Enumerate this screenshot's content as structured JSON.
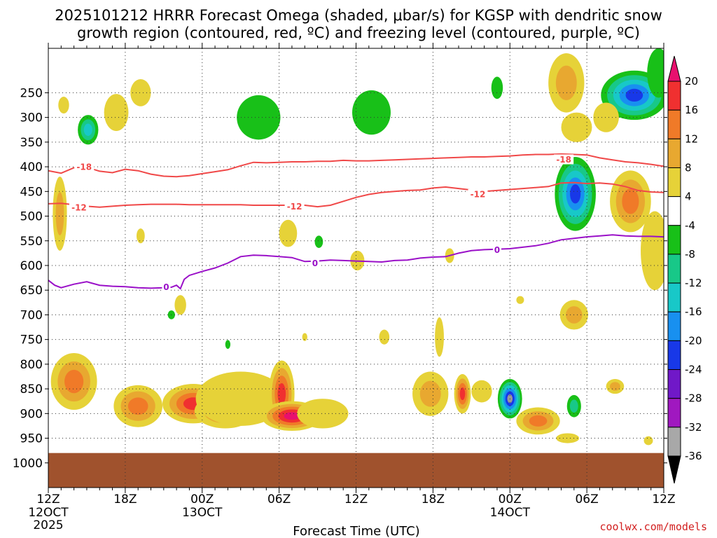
{
  "chart_data": {
    "type": "heatmap",
    "title_line1": "2025101212 HRRR Forecast Omega (shaded, μbar/s) for KGSP with dendritic snow",
    "title_line2": "growth region (contoured, red, ºC) and freezing level (contoured, purple, ºC)",
    "xlabel": "Forecast Time (UTC)",
    "ylabel": "",
    "credit": "coolwx.com/models",
    "y_axis": {
      "range": [
        1050,
        160
      ],
      "ticks": [
        250,
        300,
        350,
        400,
        450,
        500,
        550,
        600,
        650,
        700,
        750,
        800,
        850,
        900,
        950,
        1000
      ],
      "tick_labels": [
        "250",
        "300",
        "350",
        "400",
        "450",
        "500",
        "550",
        "600",
        "650",
        "700",
        "750",
        "800",
        "850",
        "900",
        "950",
        "1000"
      ]
    },
    "x_axis": {
      "range_hours": [
        0,
        48
      ],
      "ticks": [
        0,
        6,
        12,
        18,
        24,
        30,
        36,
        42,
        48
      ],
      "tick_labels": [
        "12Z",
        "18Z",
        "00Z",
        "06Z",
        "12Z",
        "18Z",
        "00Z",
        "06Z",
        "12Z"
      ],
      "date_labels": [
        {
          "hour": 0,
          "line1": "12OCT",
          "line2": "2025"
        },
        {
          "hour": 12,
          "line1": "13OCT",
          "line2": ""
        },
        {
          "hour": 36,
          "line1": "14OCT",
          "line2": ""
        }
      ],
      "minor_ticks_per_major": 6
    },
    "colorbar": {
      "labels": [
        "20",
        "16",
        "12",
        "8",
        "4",
        "-4",
        "-8",
        "-12",
        "-16",
        "-20",
        "-24",
        "-28",
        "-32",
        "-36"
      ],
      "colors": [
        "#e8106e",
        "#f03030",
        "#f07a28",
        "#e8a830",
        "#e6d238",
        "#ffffff",
        "#18c018",
        "#18c888",
        "#18c8c8",
        "#1890f0",
        "#1838e8",
        "#7018c8",
        "#a018c0",
        "#a8a8a8",
        "#000000"
      ]
    },
    "surface_band": {
      "from_pressure": 980,
      "color": "#a0522d"
    },
    "palette": {
      "p20": "#e8106e",
      "p16": "#f03030",
      "p12": "#f07a28",
      "p8": "#e8a830",
      "p4": "#e6d238",
      "n4": "#18c018",
      "n8": "#18c888",
      "n12": "#18c8c8",
      "n16": "#1890f0",
      "n20": "#1838e8",
      "contour_red": "#f04848",
      "contour_purple": "#9a10c8"
    },
    "contours": [
      {
        "name": "minus-18",
        "label": "-18",
        "color": "#f04848",
        "label_at": [
          [
            2.8,
            400
          ],
          [
            40.2,
            385
          ]
        ],
        "points": [
          [
            0,
            408
          ],
          [
            1,
            413
          ],
          [
            2,
            402
          ],
          [
            3,
            401
          ],
          [
            4,
            409
          ],
          [
            5,
            412
          ],
          [
            6,
            405
          ],
          [
            7,
            408
          ],
          [
            8,
            415
          ],
          [
            9,
            419
          ],
          [
            10,
            420
          ],
          [
            11,
            418
          ],
          [
            12,
            414
          ],
          [
            13,
            410
          ],
          [
            14,
            406
          ],
          [
            15,
            398
          ],
          [
            16,
            391
          ],
          [
            17,
            392
          ],
          [
            18,
            391
          ],
          [
            19,
            390
          ],
          [
            20,
            390
          ],
          [
            21,
            389
          ],
          [
            22,
            389
          ],
          [
            23,
            387
          ],
          [
            24,
            388
          ],
          [
            25,
            388
          ],
          [
            26,
            387
          ],
          [
            27,
            386
          ],
          [
            28,
            385
          ],
          [
            29,
            384
          ],
          [
            30,
            383
          ],
          [
            31,
            382
          ],
          [
            32,
            381
          ],
          [
            33,
            380
          ],
          [
            34,
            380
          ],
          [
            35,
            379
          ],
          [
            36,
            378
          ],
          [
            37,
            376
          ],
          [
            38,
            375
          ],
          [
            39,
            375
          ],
          [
            40,
            374
          ],
          [
            41,
            375
          ],
          [
            42,
            376
          ],
          [
            43,
            382
          ],
          [
            44,
            386
          ],
          [
            45,
            390
          ],
          [
            46,
            392
          ],
          [
            47,
            395
          ],
          [
            48,
            399
          ]
        ]
      },
      {
        "name": "minus-12",
        "label": "-12",
        "color": "#f04848",
        "label_at": [
          [
            2.4,
            482
          ],
          [
            19.2,
            480
          ],
          [
            33.5,
            455
          ]
        ],
        "points": [
          [
            0,
            475
          ],
          [
            1,
            474
          ],
          [
            2,
            477
          ],
          [
            3,
            480
          ],
          [
            4,
            482
          ],
          [
            5,
            480
          ],
          [
            6,
            478
          ],
          [
            7,
            477
          ],
          [
            8,
            476
          ],
          [
            9,
            476
          ],
          [
            10,
            476
          ],
          [
            11,
            477
          ],
          [
            12,
            477
          ],
          [
            13,
            477
          ],
          [
            14,
            477
          ],
          [
            15,
            477
          ],
          [
            16,
            478
          ],
          [
            17,
            478
          ],
          [
            18,
            478
          ],
          [
            19,
            478
          ],
          [
            20,
            478
          ],
          [
            21,
            481
          ],
          [
            22,
            478
          ],
          [
            23,
            470
          ],
          [
            24,
            462
          ],
          [
            25,
            456
          ],
          [
            26,
            452
          ],
          [
            27,
            450
          ],
          [
            28,
            448
          ],
          [
            29,
            447
          ],
          [
            30,
            443
          ],
          [
            31,
            441
          ],
          [
            32,
            444
          ],
          [
            33,
            447
          ],
          [
            34,
            450
          ],
          [
            35,
            448
          ],
          [
            36,
            446
          ],
          [
            37,
            444
          ],
          [
            38,
            442
          ],
          [
            39,
            440
          ],
          [
            40,
            433
          ],
          [
            41,
            432
          ],
          [
            42,
            434
          ],
          [
            43,
            433
          ],
          [
            44,
            435
          ],
          [
            45,
            440
          ],
          [
            46,
            448
          ],
          [
            47,
            451
          ],
          [
            48,
            452
          ]
        ]
      },
      {
        "name": "zero",
        "label": "0",
        "color": "#9a10c8",
        "label_at": [
          [
            9.2,
            643
          ],
          [
            20.8,
            595
          ],
          [
            35,
            568
          ]
        ],
        "points": [
          [
            0,
            630
          ],
          [
            0.5,
            640
          ],
          [
            1,
            645
          ],
          [
            2,
            638
          ],
          [
            3,
            633
          ],
          [
            4,
            640
          ],
          [
            5,
            642
          ],
          [
            6,
            643
          ],
          [
            7,
            645
          ],
          [
            8,
            646
          ],
          [
            9,
            645
          ],
          [
            9.6,
            644
          ],
          [
            10,
            640
          ],
          [
            10.3,
            647
          ],
          [
            10.6,
            628
          ],
          [
            11,
            620
          ],
          [
            12,
            612
          ],
          [
            13,
            605
          ],
          [
            14,
            595
          ],
          [
            15,
            582
          ],
          [
            16,
            579
          ],
          [
            17,
            580
          ],
          [
            18,
            582
          ],
          [
            19,
            584
          ],
          [
            20,
            592
          ],
          [
            21,
            591
          ],
          [
            22,
            589
          ],
          [
            23,
            590
          ],
          [
            24,
            591
          ],
          [
            25,
            592
          ],
          [
            26,
            593
          ],
          [
            27,
            590
          ],
          [
            28,
            589
          ],
          [
            29,
            585
          ],
          [
            30,
            583
          ],
          [
            31,
            582
          ],
          [
            32,
            575
          ],
          [
            33,
            570
          ],
          [
            34,
            568
          ],
          [
            35,
            567
          ],
          [
            36,
            566
          ],
          [
            37,
            563
          ],
          [
            38,
            560
          ],
          [
            39,
            555
          ],
          [
            40,
            548
          ],
          [
            41,
            545
          ],
          [
            42,
            542
          ],
          [
            43,
            540
          ],
          [
            44,
            538
          ],
          [
            45,
            540
          ],
          [
            46,
            541
          ],
          [
            47,
            541
          ],
          [
            48,
            542
          ]
        ]
      }
    ],
    "cells": [
      {
        "t": 1.2,
        "p": 275,
        "w": 0.42,
        "h": 34,
        "v": [
          4
        ]
      },
      {
        "t": 3.1,
        "p": 325,
        "w": 0.8,
        "h": 60,
        "v": [
          -4,
          -8,
          -12
        ]
      },
      {
        "t": 5.3,
        "p": 290,
        "w": 0.95,
        "h": 75,
        "v": [
          4
        ]
      },
      {
        "t": 7.2,
        "p": 250,
        "w": 0.8,
        "h": 55,
        "v": [
          4
        ]
      },
      {
        "t": 0.9,
        "p": 495,
        "w": 0.55,
        "h": 150,
        "v": [
          4,
          8
        ]
      },
      {
        "t": 7.2,
        "p": 540,
        "w": 0.32,
        "h": 30,
        "v": [
          4
        ]
      },
      {
        "t": 16.4,
        "p": 300,
        "w": 1.7,
        "h": 90,
        "v": [
          -4
        ]
      },
      {
        "t": 25.2,
        "p": 290,
        "w": 1.5,
        "h": 90,
        "v": [
          -4
        ]
      },
      {
        "t": 35.0,
        "p": 240,
        "w": 0.45,
        "h": 45,
        "v": [
          -4
        ]
      },
      {
        "t": 40.4,
        "p": 230,
        "w": 1.4,
        "h": 120,
        "v": [
          4,
          8
        ]
      },
      {
        "t": 41.2,
        "p": 320,
        "w": 1.2,
        "h": 60,
        "v": [
          4
        ]
      },
      {
        "t": 45.7,
        "p": 255,
        "w": 2.6,
        "h": 100,
        "v": [
          -4,
          -8,
          -12,
          -16,
          -20
        ]
      },
      {
        "t": 47.6,
        "p": 210,
        "w": 0.9,
        "h": 100,
        "v": [
          -4
        ]
      },
      {
        "t": 43.5,
        "p": 300,
        "w": 1.0,
        "h": 60,
        "v": [
          4
        ]
      },
      {
        "t": 41.1,
        "p": 455,
        "w": 1.6,
        "h": 150,
        "v": [
          -4,
          -8,
          -12,
          -16,
          -20
        ]
      },
      {
        "t": 45.4,
        "p": 470,
        "w": 1.6,
        "h": 125,
        "v": [
          4,
          8,
          12
        ]
      },
      {
        "t": 47.3,
        "p": 570,
        "w": 1.1,
        "h": 160,
        "v": [
          4
        ]
      },
      {
        "t": 18.7,
        "p": 535,
        "w": 0.7,
        "h": 55,
        "v": [
          4
        ]
      },
      {
        "t": 21.1,
        "p": 552,
        "w": 0.32,
        "h": 25,
        "v": [
          -4
        ]
      },
      {
        "t": 24.1,
        "p": 590,
        "w": 0.55,
        "h": 40,
        "v": [
          4
        ]
      },
      {
        "t": 31.3,
        "p": 580,
        "w": 0.35,
        "h": 30,
        "v": [
          4
        ]
      },
      {
        "t": 36.8,
        "p": 670,
        "w": 0.3,
        "h": 16,
        "v": [
          4
        ]
      },
      {
        "t": 9.6,
        "p": 700,
        "w": 0.28,
        "h": 18,
        "v": [
          -4
        ]
      },
      {
        "t": 10.3,
        "p": 680,
        "w": 0.45,
        "h": 40,
        "v": [
          4
        ]
      },
      {
        "t": 14.0,
        "p": 760,
        "w": 0.2,
        "h": 18,
        "v": [
          -4
        ]
      },
      {
        "t": 20.0,
        "p": 745,
        "w": 0.2,
        "h": 16,
        "v": [
          4
        ]
      },
      {
        "t": 2.0,
        "p": 835,
        "w": 1.8,
        "h": 115,
        "v": [
          4,
          8,
          12
        ]
      },
      {
        "t": 7.0,
        "p": 885,
        "w": 1.9,
        "h": 85,
        "v": [
          4,
          8,
          12
        ]
      },
      {
        "t": 11.3,
        "p": 880,
        "w": 2.4,
        "h": 80,
        "v": [
          4,
          8,
          12,
          16
        ]
      },
      {
        "t": 13.8,
        "p": 895,
        "w": 2.4,
        "h": 70,
        "v": [
          4,
          8,
          12
        ]
      },
      {
        "t": 15.0,
        "p": 870,
        "w": 3.5,
        "h": 110,
        "v": [
          4
        ]
      },
      {
        "t": 18.2,
        "p": 860,
        "w": 1.0,
        "h": 135,
        "v": [
          4,
          8,
          12,
          16
        ]
      },
      {
        "t": 19.0,
        "p": 905,
        "w": 2.4,
        "h": 60,
        "v": [
          4,
          8,
          12,
          16,
          20
        ]
      },
      {
        "t": 21.4,
        "p": 900,
        "w": 2.0,
        "h": 60,
        "v": [
          4
        ]
      },
      {
        "t": 26.2,
        "p": 745,
        "w": 0.4,
        "h": 30,
        "v": [
          4
        ]
      },
      {
        "t": 29.8,
        "p": 860,
        "w": 1.4,
        "h": 90,
        "v": [
          4,
          8
        ]
      },
      {
        "t": 30.5,
        "p": 745,
        "w": 0.35,
        "h": 80,
        "v": [
          4
        ]
      },
      {
        "t": 32.3,
        "p": 860,
        "w": 0.65,
        "h": 80,
        "v": [
          4,
          8,
          12,
          16
        ]
      },
      {
        "t": 36.0,
        "p": 870,
        "w": 0.95,
        "h": 80,
        "v": [
          -4,
          -8,
          -12,
          -16,
          -20,
          -24
        ]
      },
      {
        "t": 33.8,
        "p": 855,
        "w": 0.8,
        "h": 45,
        "v": [
          4
        ]
      },
      {
        "t": 38.2,
        "p": 915,
        "w": 1.7,
        "h": 55,
        "v": [
          4,
          8,
          12
        ]
      },
      {
        "t": 40.5,
        "p": 950,
        "w": 0.9,
        "h": 20,
        "v": [
          4
        ]
      },
      {
        "t": 41.0,
        "p": 700,
        "w": 1.1,
        "h": 60,
        "v": [
          4,
          8
        ]
      },
      {
        "t": 41.0,
        "p": 885,
        "w": 0.55,
        "h": 45,
        "v": [
          -4,
          -8
        ]
      },
      {
        "t": 44.2,
        "p": 845,
        "w": 0.7,
        "h": 30,
        "v": [
          4,
          8
        ]
      },
      {
        "t": 46.8,
        "p": 955,
        "w": 0.35,
        "h": 18,
        "v": [
          4
        ]
      }
    ]
  }
}
